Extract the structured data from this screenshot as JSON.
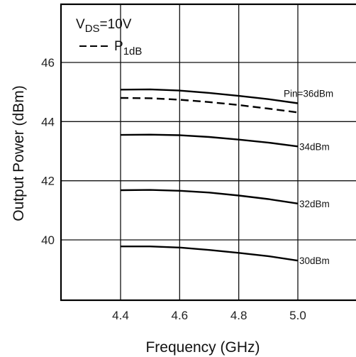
{
  "chart_data": {
    "type": "line",
    "xlabel": "Frequency (GHz)",
    "ylabel": "Output Power (dBm)",
    "xlim": [
      4.4,
      5.0
    ],
    "ylim": [
      38.0,
      48.0
    ],
    "x_ticks": [
      "4.4",
      "4.6",
      "4.8",
      "5.0"
    ],
    "y_ticks": [
      "40",
      "42",
      "44",
      "46"
    ],
    "grid": true,
    "legend": {
      "placement": "top-left",
      "condition": {
        "main": "V",
        "sub": "DS",
        "tail": "=10V"
      },
      "dashed_entry": {
        "main": "P",
        "sub": "1dB"
      }
    },
    "series": [
      {
        "label": "Pin=36dBm",
        "style": "solid",
        "points": [
          [
            4.4,
            45.08
          ],
          [
            4.5,
            45.09
          ],
          [
            4.6,
            45.05
          ],
          [
            4.7,
            44.97
          ],
          [
            4.8,
            44.87
          ],
          [
            4.9,
            44.76
          ],
          [
            5.0,
            44.62
          ]
        ]
      },
      {
        "label": "34dBm",
        "style": "solid",
        "points": [
          [
            4.4,
            43.55
          ],
          [
            4.5,
            43.56
          ],
          [
            4.6,
            43.54
          ],
          [
            4.7,
            43.48
          ],
          [
            4.8,
            43.39
          ],
          [
            4.9,
            43.29
          ],
          [
            5.0,
            43.16
          ]
        ]
      },
      {
        "label": "32dBm",
        "style": "solid",
        "points": [
          [
            4.4,
            41.68
          ],
          [
            4.5,
            41.69
          ],
          [
            4.6,
            41.66
          ],
          [
            4.7,
            41.6
          ],
          [
            4.8,
            41.5
          ],
          [
            4.9,
            41.38
          ],
          [
            5.0,
            41.23
          ]
        ]
      },
      {
        "label": "30dBm",
        "style": "solid",
        "points": [
          [
            4.4,
            39.78
          ],
          [
            4.5,
            39.78
          ],
          [
            4.6,
            39.74
          ],
          [
            4.7,
            39.66
          ],
          [
            4.8,
            39.56
          ],
          [
            4.9,
            39.45
          ],
          [
            5.0,
            39.3
          ]
        ]
      },
      {
        "label": "",
        "style": "dashed",
        "points": [
          [
            4.4,
            44.8
          ],
          [
            4.5,
            44.79
          ],
          [
            4.6,
            44.74
          ],
          [
            4.7,
            44.66
          ],
          [
            4.8,
            44.56
          ],
          [
            4.9,
            44.44
          ],
          [
            5.0,
            44.31
          ]
        ]
      }
    ]
  }
}
